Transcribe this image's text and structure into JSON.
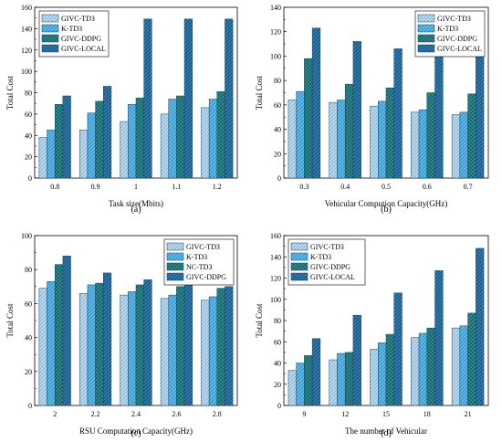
{
  "chart_data": [
    {
      "type": "bar",
      "caption": "(a)",
      "xlabel": "Task size(Mbits)",
      "ylabel": "Total Cost",
      "ylim": [
        0,
        160
      ],
      "yticks": [
        0,
        20,
        40,
        60,
        80,
        100,
        120,
        140,
        160
      ],
      "categories": [
        "0.8",
        "0.9",
        "1",
        "1.1",
        "1.2"
      ],
      "legend_position": "top-left",
      "series": [
        {
          "name": "GIVC-TD3",
          "values": [
            38,
            45,
            53,
            60,
            66
          ]
        },
        {
          "name": "K-TD3",
          "values": [
            45,
            61,
            69,
            74,
            74
          ]
        },
        {
          "name": "GIVC-DDPG",
          "values": [
            69,
            72,
            75,
            77,
            81
          ]
        },
        {
          "name": "GIVC-LOCAL",
          "values": [
            77,
            86,
            149,
            149,
            149
          ]
        }
      ]
    },
    {
      "type": "bar",
      "caption": "(b)",
      "xlabel": "Vehicular Compution Capacity(GHz)",
      "ylabel": "Total Cost",
      "ylim": [
        0,
        140
      ],
      "yticks": [
        0,
        20,
        40,
        60,
        80,
        100,
        120,
        140
      ],
      "categories": [
        "0.3",
        "0.4",
        "0.5",
        "0.6",
        "0.7"
      ],
      "legend_position": "top-right",
      "series": [
        {
          "name": "GIVC-TD3",
          "values": [
            64,
            62,
            59,
            54,
            52
          ]
        },
        {
          "name": "K-TD3",
          "values": [
            71,
            64,
            63,
            56,
            54
          ]
        },
        {
          "name": "GIVC-DDPG",
          "values": [
            98,
            77,
            74,
            70,
            69
          ]
        },
        {
          "name": "GIVC-LOCAL",
          "values": [
            123,
            112,
            106,
            103,
            100
          ]
        }
      ]
    },
    {
      "type": "bar",
      "caption": "(c)",
      "xlabel": "RSU Computation Capacity(GHz)",
      "ylabel": "Total Cost",
      "ylim": [
        0,
        100
      ],
      "yticks": [
        0,
        20,
        40,
        60,
        80,
        100
      ],
      "categories": [
        "2",
        "2.2",
        "2.4",
        "2.6",
        "2.8"
      ],
      "legend_position": "top-right",
      "series": [
        {
          "name": "GIVC-TD3",
          "values": [
            69,
            66,
            65,
            63,
            62
          ]
        },
        {
          "name": "K-TD3",
          "values": [
            73,
            71,
            67,
            65,
            64
          ]
        },
        {
          "name": "NC-TD3",
          "values": [
            83,
            72,
            71,
            70,
            69
          ]
        },
        {
          "name": "GIVC-DDPG",
          "values": [
            88,
            78,
            74,
            72,
            70
          ]
        }
      ]
    },
    {
      "type": "bar",
      "caption": "(d)",
      "xlabel": "The number of Vehicular",
      "ylabel": "Total Cost",
      "ylim": [
        0,
        160
      ],
      "yticks": [
        0,
        20,
        40,
        60,
        80,
        100,
        120,
        140,
        160
      ],
      "categories": [
        "9",
        "12",
        "15",
        "18",
        "21"
      ],
      "legend_position": "top-left",
      "series": [
        {
          "name": "GIVC-TD3",
          "values": [
            33,
            43,
            53,
            64,
            73
          ]
        },
        {
          "name": "K-TD3",
          "values": [
            40,
            49,
            59,
            68,
            75
          ]
        },
        {
          "name": "GIVC-DDPG",
          "values": [
            47,
            50,
            67,
            73,
            87
          ]
        },
        {
          "name": "GIVC-LOCAL",
          "values": [
            63,
            85,
            106,
            127,
            148
          ]
        }
      ]
    }
  ],
  "colors": {
    "series_fill": [
      "#b7d9f2",
      "#5cbaeb",
      "#2f8f93",
      "#1a5f8f"
    ],
    "series_pattern": [
      "diag",
      "diag",
      "cross",
      "diag"
    ],
    "series_pattern_color": [
      "#6a9fc8",
      "#1f6ea3",
      "#0f4e55",
      "#5c9dc9"
    ]
  }
}
